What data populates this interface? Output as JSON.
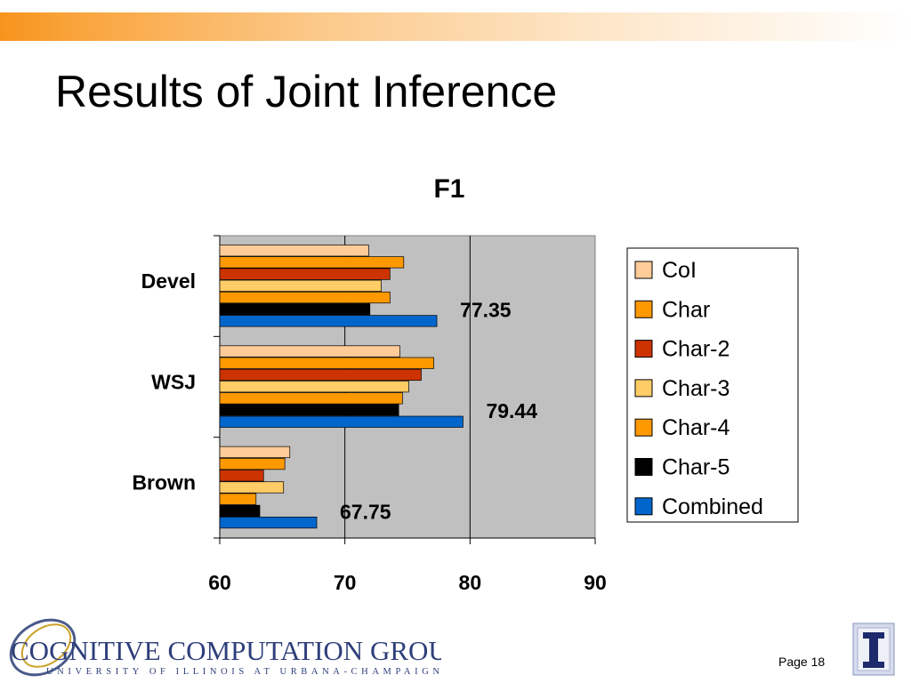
{
  "slide": {
    "title": "Results of Joint Inference",
    "page": "Page 18",
    "footer": {
      "group_name": "COGNITIVE COMPUTATION GROUP",
      "university": "UNIVERSITY OF ILLINOIS AT URBANA-CHAMPAIGN"
    }
  },
  "chart_data": {
    "type": "bar",
    "orientation": "horizontal",
    "title": "F1",
    "xlim": [
      60,
      90
    ],
    "xticks": [
      60,
      70,
      80,
      90
    ],
    "grid": true,
    "legend_position": "right",
    "categories": [
      "Devel",
      "WSJ",
      "Brown"
    ],
    "series": [
      {
        "name": "CoI",
        "color": "#ffcc99",
        "values": [
          71.9,
          74.4,
          65.6
        ]
      },
      {
        "name": "Char",
        "color": "#ff9900",
        "values": [
          74.7,
          77.1,
          65.2
        ]
      },
      {
        "name": "Char-2",
        "color": "#cc3300",
        "values": [
          73.6,
          76.1,
          63.5
        ]
      },
      {
        "name": "Char-3",
        "color": "#ffcc66",
        "values": [
          72.9,
          75.1,
          65.1
        ]
      },
      {
        "name": "Char-4",
        "color": "#ff9900",
        "values": [
          73.6,
          74.6,
          62.9
        ]
      },
      {
        "name": "Char-5",
        "color": "#000000",
        "values": [
          72.0,
          74.3,
          63.2
        ]
      },
      {
        "name": "Combined",
        "color": "#0066cc",
        "values": [
          77.35,
          79.44,
          67.75
        ]
      }
    ],
    "data_labels": [
      {
        "series": "Combined",
        "category": "Devel",
        "text": "77.35"
      },
      {
        "series": "Combined",
        "category": "WSJ",
        "text": "79.44"
      },
      {
        "series": "Combined",
        "category": "Brown",
        "text": "67.75"
      }
    ]
  }
}
